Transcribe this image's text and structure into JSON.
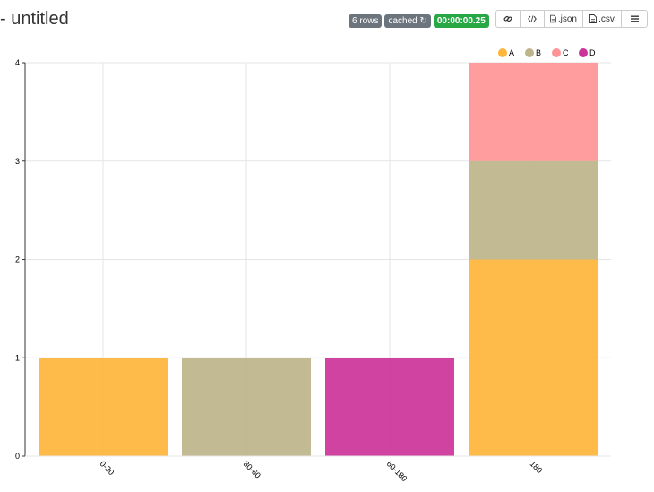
{
  "header": {
    "title": "- untitled",
    "badges": {
      "rows": "6 rows",
      "cached": "cached",
      "duration": "00:00:00.25"
    },
    "buttons": {
      "json": ".json",
      "csv": ".csv"
    }
  },
  "colors": {
    "A": "#FFB539",
    "B": "#BDB489",
    "C": "#FF9496",
    "D": "#CC3399"
  },
  "chart_data": {
    "type": "bar",
    "stacked": true,
    "categories": [
      "0-30",
      "30-60",
      "60-180",
      "180"
    ],
    "series": [
      {
        "name": "A",
        "values": [
          1,
          0,
          0,
          2
        ]
      },
      {
        "name": "B",
        "values": [
          0,
          1,
          0,
          1
        ]
      },
      {
        "name": "C",
        "values": [
          0,
          0,
          0,
          1
        ]
      },
      {
        "name": "D",
        "values": [
          0,
          0,
          1,
          0
        ]
      }
    ],
    "ylim": [
      0,
      4
    ],
    "yticks": [
      0,
      1,
      2,
      3,
      4
    ],
    "legend": "top-right",
    "grid": true
  }
}
